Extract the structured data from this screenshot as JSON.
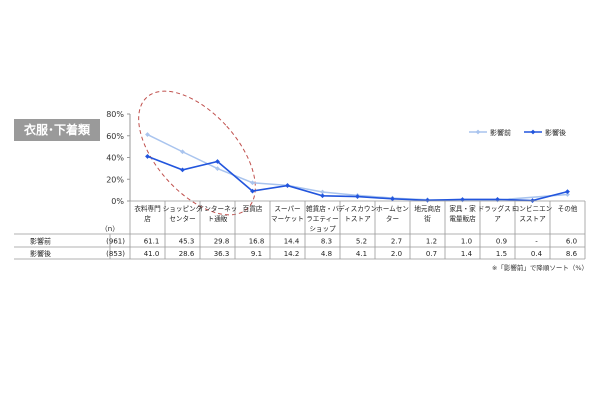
{
  "badge": "衣服･下着類",
  "note": "※「影響前」で降順ソート（%）",
  "n_label": "（n）",
  "chart_data": {
    "type": "line",
    "ylim": [
      0,
      80
    ],
    "yticks": [
      "0%",
      "20%",
      "40%",
      "60%",
      "80%"
    ],
    "categories": [
      [
        "衣料専門",
        "店"
      ],
      [
        "ショッピング",
        "センター"
      ],
      [
        "インターネッ",
        "ト通販"
      ],
      [
        "百貨店"
      ],
      [
        "スーパー",
        "マーケット"
      ],
      [
        "雑貨店・バ",
        "ラエティー",
        "ショップ"
      ],
      [
        "ディスカウン",
        "トストア"
      ],
      [
        "ホームセン",
        "ター"
      ],
      [
        "地元商店",
        "街"
      ],
      [
        "家具・家",
        "電量販店"
      ],
      [
        "ドラッグスト",
        "ア"
      ],
      [
        "コンビニエン",
        "スストア"
      ],
      [
        "その他"
      ]
    ],
    "series": [
      {
        "name": "影響前",
        "n": "(961)",
        "color": "#a9c4ee",
        "values": [
          61.1,
          45.3,
          29.8,
          16.8,
          14.4,
          8.3,
          5.2,
          2.7,
          1.2,
          1.0,
          0.9,
          null,
          6.0
        ],
        "labels": [
          "61.1",
          "45.3",
          "29.8",
          "16.8",
          "14.4",
          "8.3",
          "5.2",
          "2.7",
          "1.2",
          "1.0",
          "0.9",
          "-",
          "6.0"
        ]
      },
      {
        "name": "影響後",
        "n": "(853)",
        "color": "#2255dd",
        "values": [
          41.0,
          28.6,
          36.3,
          9.1,
          14.2,
          4.8,
          4.1,
          2.0,
          0.7,
          1.4,
          1.5,
          0.4,
          8.6
        ],
        "labels": [
          "41.0",
          "28.6",
          "36.3",
          "9.1",
          "14.2",
          "4.8",
          "4.1",
          "2.0",
          "0.7",
          "1.4",
          "1.5",
          "0.4",
          "8.6"
        ]
      }
    ]
  }
}
